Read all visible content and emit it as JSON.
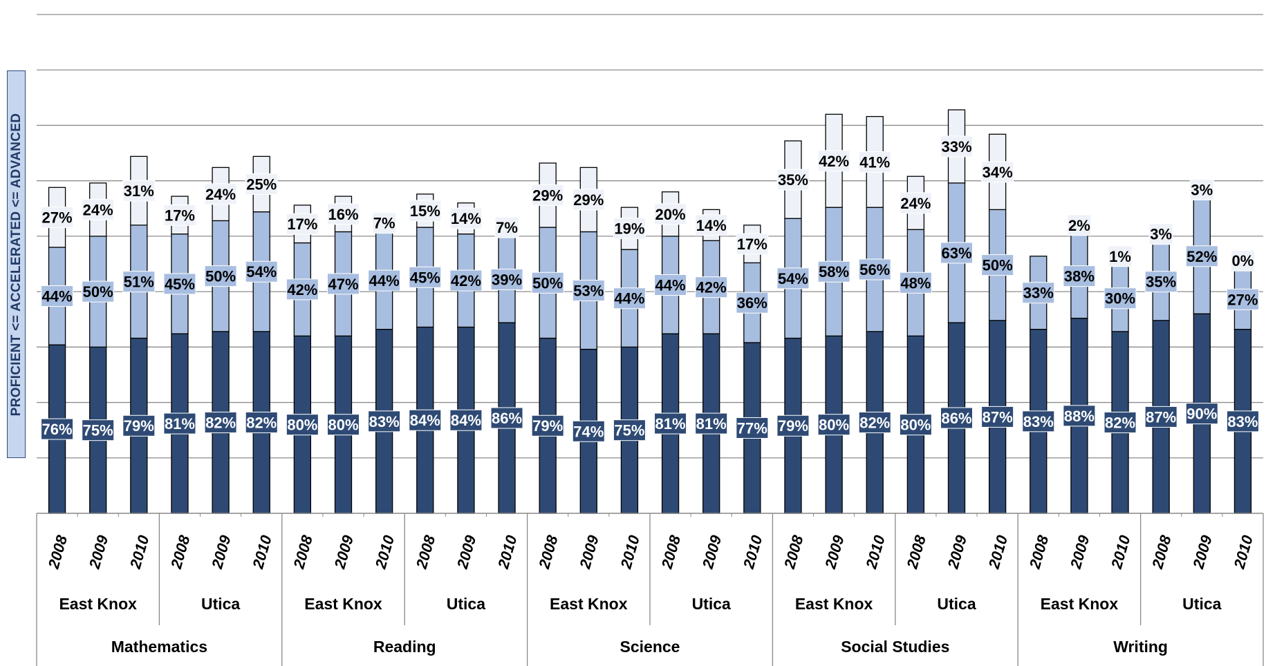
{
  "chart_data": {
    "type": "bar",
    "stacked": true,
    "ylabel": "PROFICIENT <= ACCELERATED <= ADVANCED",
    "ylim": [
      0,
      225
    ],
    "grid": true,
    "series_order": [
      "proficient_or_above",
      "accelerated_or_above",
      "advanced"
    ],
    "colors": {
      "proficient_or_above": "#2e4a74",
      "accelerated_or_above": "#a8bee0",
      "advanced": "#eef2f8",
      "gridline": "#8c8c8c",
      "axis": "#888888"
    },
    "subjects": [
      {
        "name": "Mathematics",
        "districts": [
          {
            "name": "East Knox",
            "years": [
              {
                "year": "2008",
                "values": [
                  76,
                  44,
                  27
                ],
                "labels": [
                  "76%",
                  "44%",
                  "27%"
                ]
              },
              {
                "year": "2009",
                "values": [
                  75,
                  50,
                  24
                ],
                "labels": [
                  "75%",
                  "50%",
                  "24%"
                ]
              },
              {
                "year": "2010",
                "values": [
                  79,
                  51,
                  31
                ],
                "labels": [
                  "79%",
                  "51%",
                  "31%"
                ]
              }
            ]
          },
          {
            "name": "Utica",
            "years": [
              {
                "year": "2008",
                "values": [
                  81,
                  45,
                  17
                ],
                "labels": [
                  "81%",
                  "45%",
                  "17%"
                ]
              },
              {
                "year": "2009",
                "values": [
                  82,
                  50,
                  24
                ],
                "labels": [
                  "82%",
                  "50%",
                  "24%"
                ]
              },
              {
                "year": "2010",
                "values": [
                  82,
                  54,
                  25
                ],
                "labels": [
                  "82%",
                  "54%",
                  "25%"
                ]
              }
            ]
          }
        ]
      },
      {
        "name": "Reading",
        "districts": [
          {
            "name": "East Knox",
            "years": [
              {
                "year": "2008",
                "values": [
                  80,
                  42,
                  17
                ],
                "labels": [
                  "80%",
                  "42%",
                  "17%"
                ]
              },
              {
                "year": "2009",
                "values": [
                  80,
                  47,
                  16
                ],
                "labels": [
                  "80%",
                  "47%",
                  "16%"
                ]
              },
              {
                "year": "2010",
                "values": [
                  83,
                  44,
                  7
                ],
                "labels": [
                  "83%",
                  "44%",
                  "7%"
                ]
              }
            ]
          },
          {
            "name": "Utica",
            "years": [
              {
                "year": "2008",
                "values": [
                  84,
                  45,
                  15
                ],
                "labels": [
                  "84%",
                  "45%",
                  "15%"
                ]
              },
              {
                "year": "2009",
                "values": [
                  84,
                  42,
                  14
                ],
                "labels": [
                  "84%",
                  "42%",
                  "14%"
                ]
              },
              {
                "year": "2010",
                "values": [
                  86,
                  39,
                  7
                ],
                "labels": [
                  "86%",
                  "39%",
                  "7%"
                ]
              }
            ]
          }
        ]
      },
      {
        "name": "Science",
        "districts": [
          {
            "name": "East Knox",
            "years": [
              {
                "year": "2008",
                "values": [
                  79,
                  50,
                  29
                ],
                "labels": [
                  "79%",
                  "50%",
                  "29%"
                ]
              },
              {
                "year": "2009",
                "values": [
                  74,
                  53,
                  29
                ],
                "labels": [
                  "74%",
                  "53%",
                  "29%"
                ]
              },
              {
                "year": "2010",
                "values": [
                  75,
                  44,
                  19
                ],
                "labels": [
                  "75%",
                  "44%",
                  "19%"
                ]
              }
            ]
          },
          {
            "name": "Utica",
            "years": [
              {
                "year": "2008",
                "values": [
                  81,
                  44,
                  20
                ],
                "labels": [
                  "81%",
                  "44%",
                  "20%"
                ]
              },
              {
                "year": "2009",
                "values": [
                  81,
                  42,
                  14
                ],
                "labels": [
                  "81%",
                  "42%",
                  "14%"
                ]
              },
              {
                "year": "2010",
                "values": [
                  77,
                  36,
                  17
                ],
                "labels": [
                  "77%",
                  "36%",
                  "17%"
                ]
              }
            ]
          }
        ]
      },
      {
        "name": "Social Studies",
        "districts": [
          {
            "name": "East Knox",
            "years": [
              {
                "year": "2008",
                "values": [
                  79,
                  54,
                  35
                ],
                "labels": [
                  "79%",
                  "54%",
                  "35%"
                ]
              },
              {
                "year": "2009",
                "values": [
                  80,
                  58,
                  42
                ],
                "labels": [
                  "80%",
                  "58%",
                  "42%"
                ]
              },
              {
                "year": "2010",
                "values": [
                  82,
                  56,
                  41
                ],
                "labels": [
                  "82%",
                  "56%",
                  "41%"
                ]
              }
            ]
          },
          {
            "name": "Utica",
            "years": [
              {
                "year": "2008",
                "values": [
                  80,
                  48,
                  24
                ],
                "labels": [
                  "80%",
                  "48%",
                  "24%"
                ]
              },
              {
                "year": "2009",
                "values": [
                  86,
                  63,
                  33
                ],
                "labels": [
                  "86%",
                  "63%",
                  "33%"
                ]
              },
              {
                "year": "2010",
                "values": [
                  87,
                  50,
                  34
                ],
                "labels": [
                  "87%",
                  "50%",
                  "34%"
                ]
              }
            ]
          }
        ]
      },
      {
        "name": "Writing",
        "districts": [
          {
            "name": "East Knox",
            "years": [
              {
                "year": "2008",
                "values": [
                  83,
                  33,
                  0
                ],
                "labels": [
                  "83%",
                  "33%",
                  ""
                ]
              },
              {
                "year": "2009",
                "values": [
                  88,
                  38,
                  2
                ],
                "labels": [
                  "88%",
                  "38%",
                  "2%"
                ]
              },
              {
                "year": "2010",
                "values": [
                  82,
                  30,
                  1
                ],
                "labels": [
                  "82%",
                  "30%",
                  "1%"
                ]
              }
            ]
          },
          {
            "name": "Utica",
            "years": [
              {
                "year": "2008",
                "values": [
                  87,
                  35,
                  3
                ],
                "labels": [
                  "87%",
                  "35%",
                  "3%"
                ]
              },
              {
                "year": "2009",
                "values": [
                  90,
                  52,
                  3
                ],
                "labels": [
                  "90%",
                  "52%",
                  "3%"
                ]
              },
              {
                "year": "2010",
                "values": [
                  83,
                  27,
                  0
                ],
                "labels": [
                  "83%",
                  "27%",
                  "0%"
                ]
              }
            ]
          }
        ]
      }
    ]
  }
}
